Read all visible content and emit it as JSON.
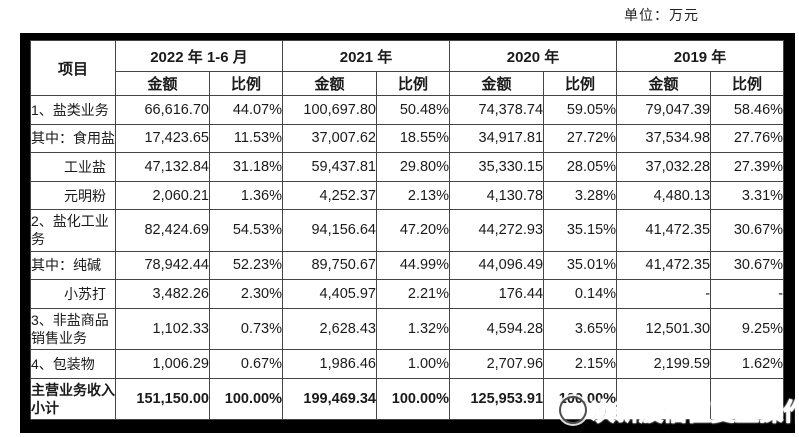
{
  "page": {
    "unit_label": "单位：万元"
  },
  "table": {
    "item_header": "项目",
    "col_groups": [
      {
        "label": "2022 年 1-6 月"
      },
      {
        "label": "2021 年"
      },
      {
        "label": "2020 年"
      },
      {
        "label": "2019 年"
      }
    ],
    "sub_headers": {
      "amount": "金额",
      "ratio": "比例"
    },
    "rows": [
      {
        "label": "1、盐类业务",
        "label_align": "left",
        "bold": false,
        "cells": [
          "66,616.70",
          "44.07%",
          "100,697.80",
          "50.48%",
          "74,378.74",
          "59.05%",
          "79,047.39",
          "58.46%"
        ]
      },
      {
        "label": "其中：食用盐",
        "label_align": "left",
        "bold": false,
        "cells": [
          "17,423.65",
          "11.53%",
          "37,007.62",
          "18.55%",
          "34,917.81",
          "27.72%",
          "37,534.98",
          "27.76%"
        ]
      },
      {
        "label": "工业盐",
        "label_align": "right",
        "bold": false,
        "cells": [
          "47,132.84",
          "31.18%",
          "59,437.81",
          "29.80%",
          "35,330.15",
          "28.05%",
          "37,032.28",
          "27.39%"
        ]
      },
      {
        "label": "元明粉",
        "label_align": "right",
        "bold": false,
        "cells": [
          "2,060.21",
          "1.36%",
          "4,252.37",
          "2.13%",
          "4,130.78",
          "3.28%",
          "4,480.13",
          "3.31%"
        ]
      },
      {
        "label": "2、盐化工业务",
        "label_align": "left",
        "bold": false,
        "cells": [
          "82,424.69",
          "54.53%",
          "94,156.64",
          "47.20%",
          "44,272.93",
          "35.15%",
          "41,472.35",
          "30.67%"
        ]
      },
      {
        "label": "其中：纯碱",
        "label_align": "left",
        "bold": false,
        "cells": [
          "78,942.44",
          "52.23%",
          "89,750.67",
          "44.99%",
          "44,096.49",
          "35.01%",
          "41,472.35",
          "30.67%"
        ]
      },
      {
        "label": "小苏打",
        "label_align": "right",
        "bold": false,
        "cells": [
          "3,482.26",
          "2.30%",
          "4,405.97",
          "2.21%",
          "176.44",
          "0.14%",
          "-",
          "-"
        ]
      },
      {
        "label": "3、非盐商品销售业务",
        "label_align": "left",
        "bold": false,
        "cells": [
          "1,102.33",
          "0.73%",
          "2,628.43",
          "1.32%",
          "4,594.28",
          "3.65%",
          "12,501.30",
          "9.25%"
        ]
      },
      {
        "label": "4、包装物",
        "label_align": "left",
        "bold": false,
        "cells": [
          "1,006.29",
          "0.67%",
          "1,986.46",
          "1.00%",
          "2,707.96",
          "2.15%",
          "2,199.59",
          "1.62%"
        ]
      },
      {
        "label": "主营业务收入小计",
        "label_align": "left",
        "bold": true,
        "cells": [
          "151,150.00",
          "100.00%",
          "199,469.34",
          "100.00%",
          "125,953.91",
          "100.00%",
          "",
          ""
        ]
      }
    ]
  },
  "watermark": {
    "text": "次新股估值复盘操作"
  }
}
